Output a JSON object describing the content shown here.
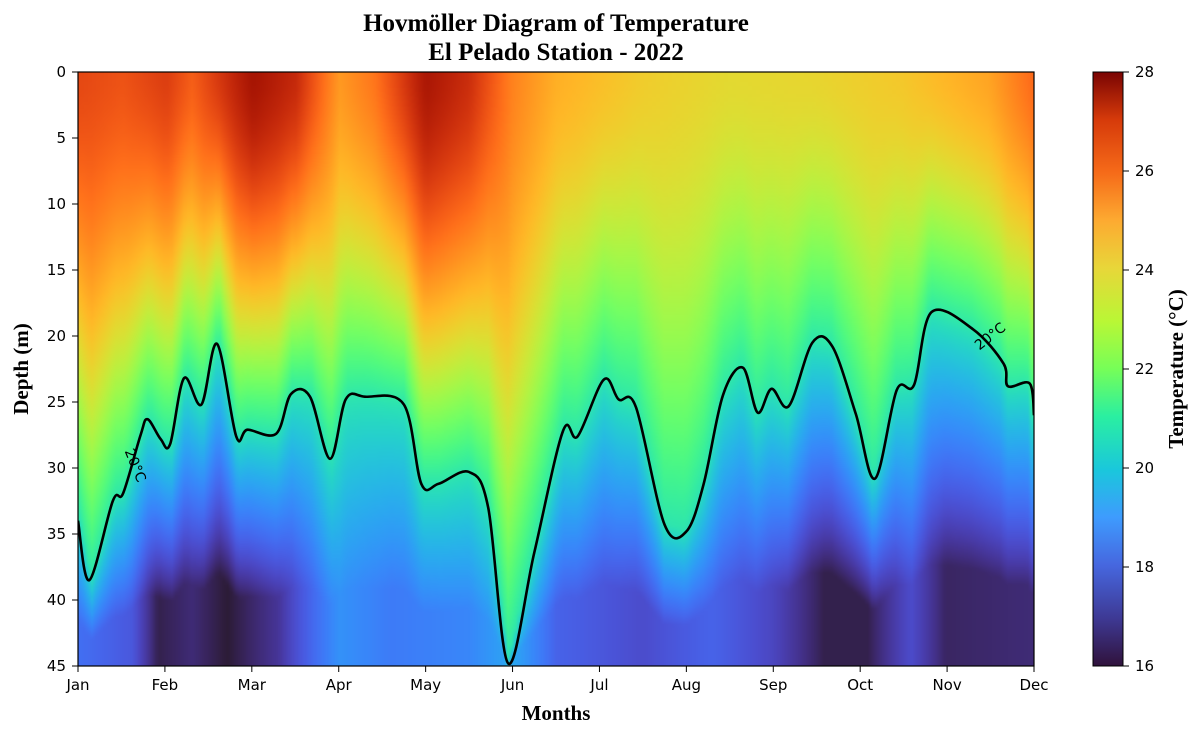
{
  "chart_data": {
    "type": "heatmap",
    "title": "Hovmöller Diagram of Temperature",
    "subtitle": "El Pelado Station - 2022",
    "xlabel": "Months",
    "ylabel": "Depth (m)",
    "x_ticks": [
      "Jan",
      "Feb",
      "Mar",
      "Apr",
      "May",
      "Jun",
      "Jul",
      "Aug",
      "Sep",
      "Oct",
      "Nov",
      "Dec"
    ],
    "y_ticks": [
      0,
      5,
      10,
      15,
      20,
      25,
      30,
      35,
      40,
      45
    ],
    "ylim": [
      45,
      0
    ],
    "y_inverted": true,
    "colorbar": {
      "label": "Temperature (°C)",
      "ticks": [
        16,
        18,
        20,
        22,
        24,
        26,
        28
      ],
      "vmin": 16,
      "vmax": 28,
      "colormap": "turbo"
    },
    "contour": {
      "level_label": "20°C",
      "level": 20,
      "label_count": 2,
      "depth_by_month": [
        [
          0.0,
          34
        ],
        [
          0.13,
          38.5
        ],
        [
          0.4,
          32.5
        ],
        [
          0.52,
          31.9
        ],
        [
          0.72,
          27.5
        ],
        [
          0.8,
          26.3
        ],
        [
          0.95,
          27.8
        ],
        [
          1.06,
          28.2
        ],
        [
          1.22,
          23.2
        ],
        [
          1.42,
          25.2
        ],
        [
          1.6,
          20.6
        ],
        [
          1.82,
          27.6
        ],
        [
          1.95,
          27.1
        ],
        [
          2.28,
          27.4
        ],
        [
          2.45,
          24.4
        ],
        [
          2.67,
          24.6
        ],
        [
          2.9,
          29.3
        ],
        [
          3.08,
          24.8
        ],
        [
          3.3,
          24.6
        ],
        [
          3.75,
          25.2
        ],
        [
          3.95,
          31.2
        ],
        [
          4.15,
          31.2
        ],
        [
          4.5,
          30.3
        ],
        [
          4.72,
          33.0
        ],
        [
          4.95,
          44.8
        ],
        [
          5.25,
          36.4
        ],
        [
          5.58,
          27.2
        ],
        [
          5.75,
          27.6
        ],
        [
          6.05,
          23.3
        ],
        [
          6.22,
          24.8
        ],
        [
          6.42,
          25.4
        ],
        [
          6.75,
          34.3
        ],
        [
          7.0,
          34.8
        ],
        [
          7.2,
          31.2
        ],
        [
          7.42,
          24.5
        ],
        [
          7.65,
          22.4
        ],
        [
          7.82,
          25.8
        ],
        [
          7.98,
          24.0
        ],
        [
          8.18,
          25.3
        ],
        [
          8.45,
          20.5
        ],
        [
          8.68,
          20.8
        ],
        [
          8.95,
          25.9
        ],
        [
          9.17,
          30.8
        ],
        [
          9.42,
          24.1
        ],
        [
          9.62,
          23.7
        ],
        [
          9.82,
          18.2
        ],
        [
          10.3,
          19.5
        ],
        [
          10.65,
          22.1
        ],
        [
          10.7,
          23.8
        ],
        [
          10.95,
          23.6
        ],
        [
          11.0,
          26.0
        ]
      ]
    }
  }
}
